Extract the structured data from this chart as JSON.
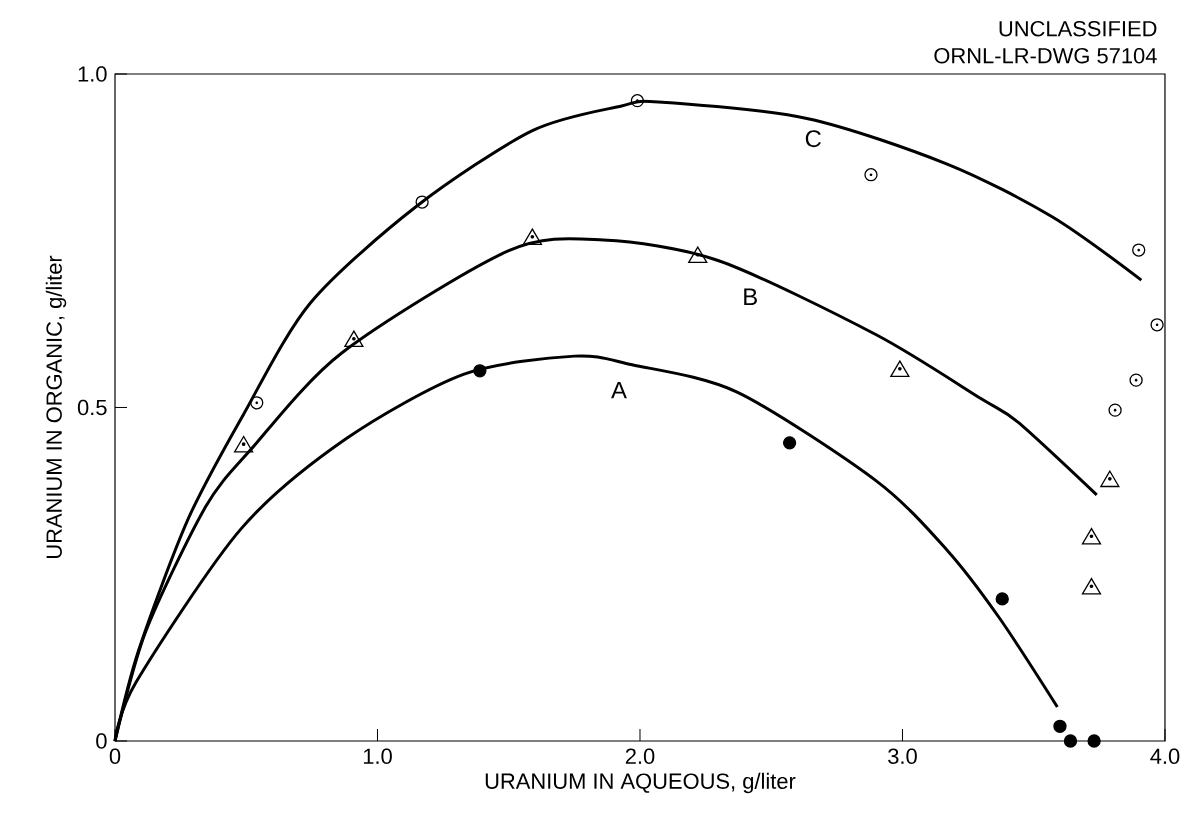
{
  "chart_data": {
    "type": "scatter",
    "xlabel": "URANIUM IN AQUEOUS, g/liter",
    "ylabel": "URANIUM IN ORGANIC, g/liter",
    "xlim": [
      0,
      4
    ],
    "ylim": [
      0,
      1
    ],
    "xticks": [
      0,
      {
        "value": 1,
        "label": "1.0"
      },
      {
        "value": 2,
        "label": "2.0"
      },
      {
        "value": 3,
        "label": "3.0"
      },
      {
        "value": 4,
        "label": "4.0"
      }
    ],
    "yticks": [
      0,
      0.5,
      {
        "value": 1,
        "label": "1.0"
      }
    ],
    "series": [
      {
        "marker": "circle",
        "color": "#000000",
        "x": [
          1.39,
          2.57,
          3.38,
          3.6,
          3.64,
          3.73
        ],
        "values": [
          0.555,
          0.447,
          0.213,
          0.022,
          0,
          0
        ]
      },
      {
        "marker": "triangle",
        "color": "#000000",
        "x": [
          0.49,
          0.91,
          1.59,
          2.22,
          2.99,
          3.79,
          3.72,
          3.72
        ],
        "values": [
          0.445,
          0.603,
          0.756,
          0.729,
          0.558,
          0.393,
          0.307,
          0.232
        ]
      },
      {
        "marker": "circle-dot",
        "color": "#000000",
        "x": [
          0.54,
          1.17,
          1.99,
          2.88,
          3.9,
          3.97,
          3.89,
          3.81
        ],
        "values": [
          0.507,
          0.808,
          0.96,
          0.849,
          0.736,
          0.624,
          0.541,
          0.496
        ]
      },
      {
        "type": "line",
        "marker": "none",
        "color": "#000000",
        "x": [
          0,
          0.08,
          0.48,
          0.88,
          1.33,
          1.75,
          1.97,
          2.37,
          2.9,
          3.17,
          3.37,
          3.59
        ],
        "values": [
          0,
          0.088,
          0.318,
          0.453,
          0.55,
          0.577,
          0.564,
          0.523,
          0.39,
          0.286,
          0.184,
          0.051
        ]
      },
      {
        "type": "line",
        "marker": "none",
        "color": "#000000",
        "x": [
          0,
          0.116,
          0.345,
          0.52,
          0.865,
          1.5,
          1.86,
          2.3,
          2.9,
          3.3,
          3.44,
          3.74
        ],
        "values": [
          0,
          0.163,
          0.351,
          0.438,
          0.582,
          0.735,
          0.751,
          0.72,
          0.609,
          0.513,
          0.478,
          0.369
        ]
      },
      {
        "type": "line",
        "marker": "none",
        "color": "#000000",
        "x": [
          0,
          0.09,
          0.28,
          0.49,
          0.745,
          1.15,
          1.59,
          1.93,
          2.07,
          2.64,
          3.17,
          3.57,
          3.91
        ],
        "values": [
          0,
          0.136,
          0.334,
          0.49,
          0.657,
          0.802,
          0.915,
          0.952,
          0.958,
          0.933,
          0.865,
          0.786,
          0.691
        ]
      }
    ],
    "annotations": [
      "UNCLASSIFIED",
      "ORNL-LR-DWG 57104",
      "A",
      "B",
      "C"
    ]
  }
}
